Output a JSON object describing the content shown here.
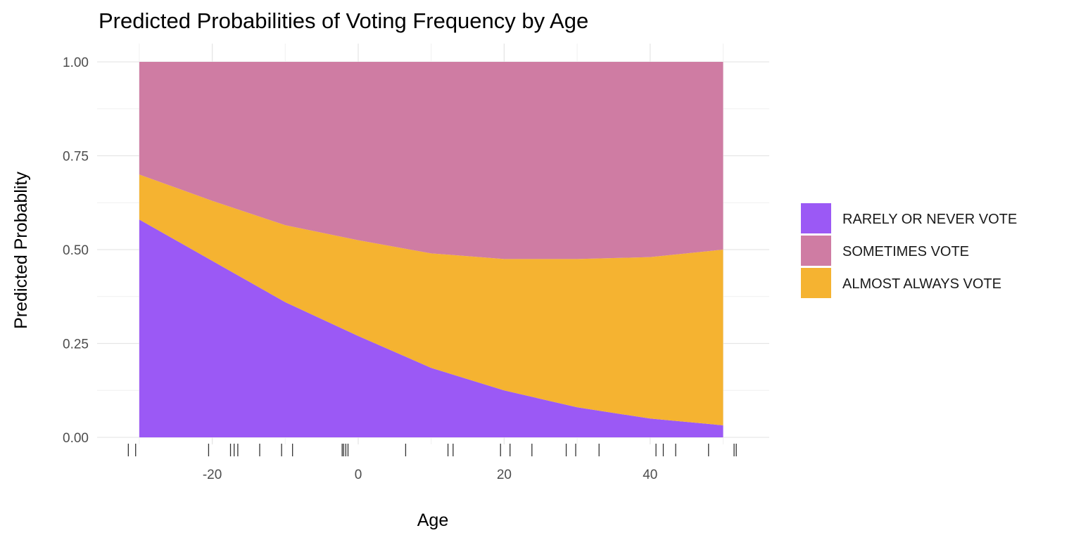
{
  "chart_data": {
    "type": "area",
    "stacked": true,
    "title": "Predicted Probabilities of Voting Frequency by Age",
    "xlabel": "Age",
    "ylabel": "Predicted Probablity",
    "xlim": [
      -35,
      55
    ],
    "ylim": [
      0,
      1
    ],
    "x_ticks": [
      -20,
      0,
      20,
      40
    ],
    "x_tick_labels": [
      "-20",
      "0",
      "20",
      "40"
    ],
    "y_ticks": [
      0,
      0.25,
      0.5,
      0.75,
      1.0
    ],
    "y_tick_labels": [
      "0.00",
      "0.25",
      "0.50",
      "0.75",
      "1.00"
    ],
    "grid": true,
    "legend_position": "right",
    "x": [
      -30,
      -20,
      -10,
      0,
      10,
      20,
      30,
      40,
      50
    ],
    "series": [
      {
        "name": "RARELY OR NEVER VOTE",
        "color": "#9B59F5",
        "values": [
          0.58,
          0.47,
          0.36,
          0.27,
          0.185,
          0.125,
          0.08,
          0.05,
          0.032
        ]
      },
      {
        "name": "ALMOST ALWAYS VOTE",
        "color": "#F5B331",
        "values": [
          0.12,
          0.16,
          0.205,
          0.255,
          0.305,
          0.35,
          0.395,
          0.43,
          0.468
        ]
      },
      {
        "name": "SOMETIMES VOTE",
        "color": "#CF7CA3",
        "values": [
          0.3,
          0.37,
          0.435,
          0.475,
          0.51,
          0.525,
          0.525,
          0.52,
          0.5
        ]
      }
    ],
    "legend_order": [
      "RARELY OR NEVER VOTE",
      "SOMETIMES VOTE",
      "ALMOST ALWAYS VOTE"
    ],
    "rug_x": [
      -31.5,
      -30.5,
      -20.5,
      -17.5,
      -17,
      -16.5,
      -13.5,
      -10.5,
      -9,
      -2.2,
      -2,
      -1.7,
      -1.4,
      6.5,
      12.3,
      13,
      19.5,
      20.8,
      23.8,
      28.5,
      29.8,
      33,
      40.8,
      41.8,
      43.5,
      48,
      51.5,
      51.8
    ]
  }
}
